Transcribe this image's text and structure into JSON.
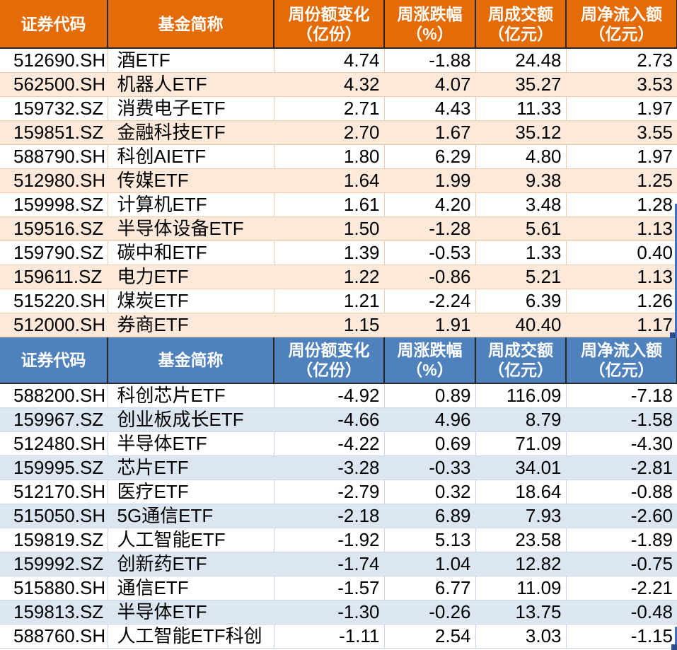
{
  "tables": [
    {
      "name": "weekly-share-increase-table",
      "header_bg": "#E36C09",
      "stripe_bg": "#FDE9D9",
      "grid_color": "#F3CBA9",
      "columns": [
        [
          "证券代码"
        ],
        [
          "基金简称"
        ],
        [
          "周份额变化",
          "（亿份）"
        ],
        [
          "周涨跌幅",
          "（%）"
        ],
        [
          "周成交额",
          "（亿元）"
        ],
        [
          "周净流入额",
          "（亿元）"
        ]
      ],
      "rows": [
        [
          "512690.SH",
          "酒ETF",
          "4.74",
          "-1.88",
          "24.48",
          "2.73"
        ],
        [
          "562500.SH",
          "机器人ETF",
          "4.32",
          "4.07",
          "35.27",
          "3.53"
        ],
        [
          "159732.SZ",
          "消费电子ETF",
          "2.71",
          "4.43",
          "11.33",
          "1.97"
        ],
        [
          "159851.SZ",
          "金融科技ETF",
          "2.70",
          "1.67",
          "35.12",
          "3.55"
        ],
        [
          "588790.SH",
          "科创AIETF",
          "1.80",
          "6.29",
          "4.80",
          "1.97"
        ],
        [
          "512980.SH",
          "传媒ETF",
          "1.64",
          "1.99",
          "9.38",
          "1.25"
        ],
        [
          "159998.SZ",
          "计算机ETF",
          "1.61",
          "4.20",
          "3.48",
          "1.28"
        ],
        [
          "159516.SZ",
          "半导体设备ETF",
          "1.50",
          "-1.28",
          "5.61",
          "1.13"
        ],
        [
          "159790.SZ",
          "碳中和ETF",
          "1.39",
          "-0.53",
          "1.33",
          "0.40"
        ],
        [
          "159611.SZ",
          "电力ETF",
          "1.22",
          "-0.86",
          "5.21",
          "1.13"
        ],
        [
          "515220.SH",
          "煤炭ETF",
          "1.21",
          "-2.24",
          "6.39",
          "1.26"
        ],
        [
          "512000.SH",
          "券商ETF",
          "1.15",
          "1.91",
          "40.40",
          "1.17"
        ]
      ]
    },
    {
      "name": "weekly-share-decrease-table",
      "header_bg": "#4F81BD",
      "stripe_bg": "#DCE6F1",
      "grid_color": "#C6D5EA",
      "columns": [
        [
          "证券代码"
        ],
        [
          "基金简称"
        ],
        [
          "周份额变化",
          "（亿份）"
        ],
        [
          "周涨跌幅",
          "（%）"
        ],
        [
          "周成交额",
          "（亿元）"
        ],
        [
          "周净流入额",
          "（亿元）"
        ]
      ],
      "rows": [
        [
          "588200.SH",
          "科创芯片ETF",
          "-4.92",
          "0.89",
          "116.09",
          "-7.18"
        ],
        [
          "159967.SZ",
          "创业板成长ETF",
          "-4.66",
          "4.96",
          "8.79",
          "-1.58"
        ],
        [
          "512480.SH",
          "半导体ETF",
          "-4.22",
          "0.69",
          "71.09",
          "-4.30"
        ],
        [
          "159995.SZ",
          "芯片ETF",
          "-3.28",
          "-0.33",
          "34.01",
          "-2.81"
        ],
        [
          "512170.SH",
          "医疗ETF",
          "-2.79",
          "0.32",
          "18.64",
          "-0.88"
        ],
        [
          "515050.SH",
          "5G通信ETF",
          "-2.18",
          "6.89",
          "7.93",
          "-2.60"
        ],
        [
          "159819.SZ",
          "人工智能ETF",
          "-1.92",
          "5.13",
          "23.58",
          "-1.89"
        ],
        [
          "159992.SZ",
          "创新药ETF",
          "-1.74",
          "1.04",
          "12.82",
          "-0.75"
        ],
        [
          "515880.SH",
          "通信ETF",
          "-1.57",
          "6.77",
          "11.09",
          "-2.21"
        ],
        [
          "159813.SZ",
          "半导体ETF",
          "-1.30",
          "-0.26",
          "13.75",
          "-0.48"
        ],
        [
          "588760.SH",
          "人工智能ETF科创",
          "-1.11",
          "2.54",
          "3.03",
          "-1.15"
        ]
      ]
    }
  ],
  "selection": {
    "line_color": "#4170C0",
    "handle_color": "#2D4D8E"
  }
}
